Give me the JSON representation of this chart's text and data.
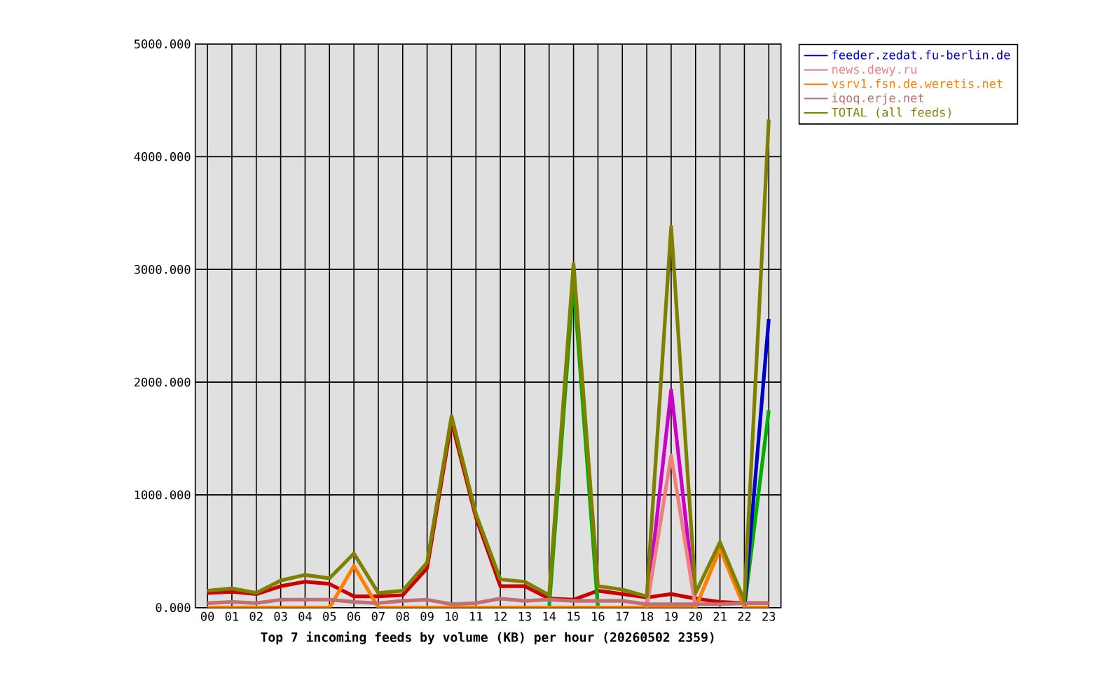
{
  "chart_data": {
    "type": "line",
    "title": "Top 7 incoming feeds by volume (KB) per hour (20260502 2359)",
    "categories": [
      "00",
      "01",
      "02",
      "03",
      "04",
      "05",
      "06",
      "07",
      "08",
      "09",
      "10",
      "11",
      "12",
      "13",
      "14",
      "15",
      "16",
      "17",
      "18",
      "19",
      "20",
      "21",
      "22",
      "23"
    ],
    "series": [
      {
        "color": "#cc0000",
        "values": [
          130,
          140,
          120,
          190,
          230,
          210,
          100,
          100,
          110,
          350,
          1650,
          800,
          190,
          190,
          80,
          70,
          150,
          120,
          90,
          120,
          80,
          50,
          40,
          40
        ]
      },
      {
        "color": "#00b000",
        "values": [
          null,
          null,
          null,
          null,
          null,
          null,
          null,
          null,
          null,
          null,
          null,
          null,
          null,
          null,
          0,
          2900,
          0,
          null,
          null,
          null,
          null,
          null,
          0,
          1750
        ]
      },
      {
        "name": "feeder.zedat.fu-berlin.de",
        "color": "#0000cc",
        "values": [
          null,
          null,
          null,
          null,
          null,
          null,
          null,
          null,
          null,
          null,
          null,
          null,
          null,
          null,
          null,
          null,
          null,
          null,
          null,
          null,
          null,
          null,
          0,
          2560
        ]
      },
      {
        "color": "#cc00cc",
        "values": [
          null,
          null,
          null,
          null,
          null,
          null,
          null,
          null,
          null,
          null,
          null,
          null,
          null,
          null,
          null,
          null,
          null,
          null,
          0,
          1930,
          0,
          null,
          null,
          null
        ]
      },
      {
        "name": "news.dewy.ru",
        "color": "#f08080",
        "values": [
          null,
          null,
          null,
          null,
          null,
          null,
          null,
          null,
          null,
          null,
          null,
          null,
          null,
          null,
          null,
          null,
          null,
          null,
          0,
          1350,
          0,
          null,
          null,
          null
        ]
      },
      {
        "name": "vsrv1.fsn.de.weretis.net",
        "color": "#ff8000",
        "values": [
          0,
          0,
          0,
          0,
          0,
          0,
          370,
          0,
          0,
          0,
          0,
          0,
          0,
          0,
          0,
          0,
          0,
          0,
          0,
          0,
          0,
          520,
          0,
          0
        ]
      },
      {
        "name": "iqoq.erje.net",
        "color": "#c07070",
        "values": [
          40,
          50,
          40,
          70,
          70,
          70,
          50,
          40,
          60,
          70,
          30,
          40,
          80,
          60,
          70,
          60,
          60,
          60,
          30,
          30,
          30,
          30,
          40,
          40
        ]
      },
      {
        "name": "TOTAL (all feeds)",
        "color": "#808000",
        "values": [
          150,
          170,
          130,
          240,
          290,
          260,
          480,
          130,
          150,
          400,
          1700,
          830,
          250,
          230,
          110,
          3050,
          190,
          160,
          100,
          3380,
          130,
          580,
          60,
          4330
        ]
      }
    ],
    "ylim": [
      0,
      5000
    ],
    "yticks": [
      {
        "value": 0,
        "label": "0.000"
      },
      {
        "value": 1000,
        "label": "1000.000"
      },
      {
        "value": 2000,
        "label": "2000.000"
      },
      {
        "value": 3000,
        "label": "3000.000"
      },
      {
        "value": 4000,
        "label": "4000.000"
      },
      {
        "value": 5000,
        "label": "5000.000"
      }
    ],
    "grid": true,
    "legend": "top right",
    "marker": "none",
    "line_style": "solid"
  }
}
